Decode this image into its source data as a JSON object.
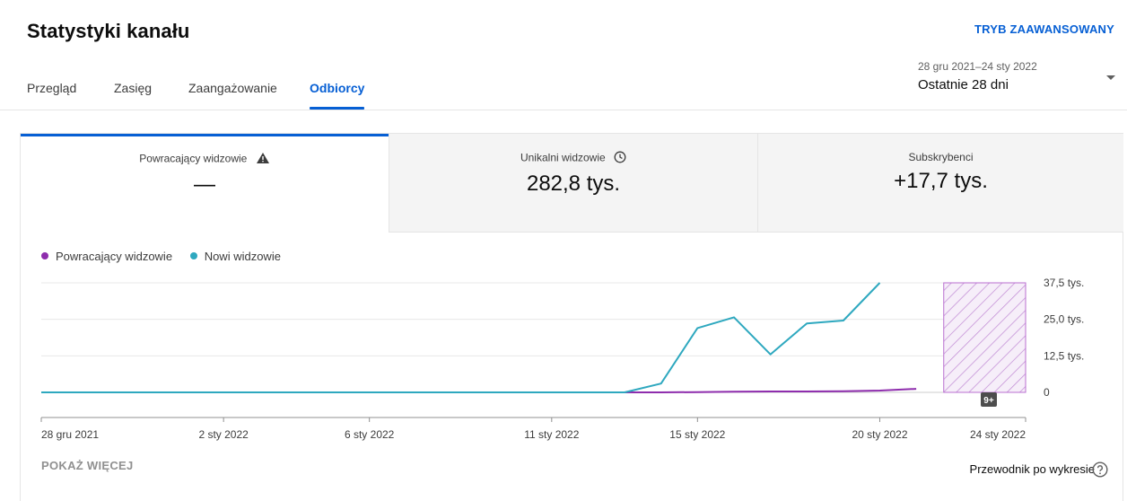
{
  "header": {
    "title": "Statystyki kanału",
    "advanced_mode": "TRYB ZAAWANSOWANY"
  },
  "tabs": [
    {
      "label": "Przegląd",
      "active": false
    },
    {
      "label": "Zasięg",
      "active": false
    },
    {
      "label": "Zaangażowanie",
      "active": false
    },
    {
      "label": "Odbiorcy",
      "active": true
    }
  ],
  "date_range": {
    "range": "28 gru 2021–24 sty 2022",
    "label": "Ostatnie 28 dni"
  },
  "metrics": [
    {
      "label": "Powracający widzowie",
      "value": "—",
      "icon": "warning-icon"
    },
    {
      "label": "Unikalni widzowie",
      "value": "282,8 tys.",
      "icon": "clock-icon"
    },
    {
      "label": "Subskrybenci",
      "value": "+17,7 tys."
    }
  ],
  "colors": {
    "accent": "#065fd4",
    "returning": "#8e2dad",
    "new": "#2ea8bf",
    "hatch": "#c38fd6"
  },
  "actions": {
    "show_more": "POKAŻ WIĘCEJ",
    "chart_guide": "Przewodnik po wykresie"
  },
  "chart_data": {
    "type": "line",
    "x": [
      "2021-12-28",
      "2021-12-29",
      "2021-12-30",
      "2021-12-31",
      "2022-01-01",
      "2022-01-02",
      "2022-01-03",
      "2022-01-04",
      "2022-01-05",
      "2022-01-06",
      "2022-01-07",
      "2022-01-08",
      "2022-01-09",
      "2022-01-10",
      "2022-01-11",
      "2022-01-12",
      "2022-01-13",
      "2022-01-14",
      "2022-01-15",
      "2022-01-16",
      "2022-01-17",
      "2022-01-18",
      "2022-01-19",
      "2022-01-20",
      "2022-01-21"
    ],
    "series": [
      {
        "name": "Powracający widzowie",
        "color": "#8e2dad",
        "values": [
          0,
          0,
          0,
          0,
          0,
          0,
          0,
          0,
          0,
          0,
          0,
          0,
          0,
          0,
          0,
          0,
          0,
          0,
          100,
          200,
          300,
          300,
          400,
          600,
          1200
        ]
      },
      {
        "name": "Nowi widzowie",
        "color": "#2ea8bf",
        "values": [
          0,
          0,
          0,
          0,
          0,
          0,
          0,
          0,
          0,
          0,
          0,
          0,
          0,
          0,
          0,
          0,
          0,
          3000,
          22000,
          25700,
          13000,
          23600,
          24600,
          37500,
          null
        ]
      }
    ],
    "x_ticks": [
      "28 gru 2021",
      "2 sty 2022",
      "6 sty 2022",
      "11 sty 2022",
      "15 sty 2022",
      "20 sty 2022",
      "24 sty 2022"
    ],
    "y_ticks": [
      "37,5 tys.",
      "25,0 tys.",
      "12,5 tys.",
      "0"
    ],
    "ylim": [
      0,
      37500
    ],
    "incomplete_from": "2022-01-22",
    "incomplete_badge": "9+",
    "grid": true,
    "legend_position": "top-left"
  }
}
